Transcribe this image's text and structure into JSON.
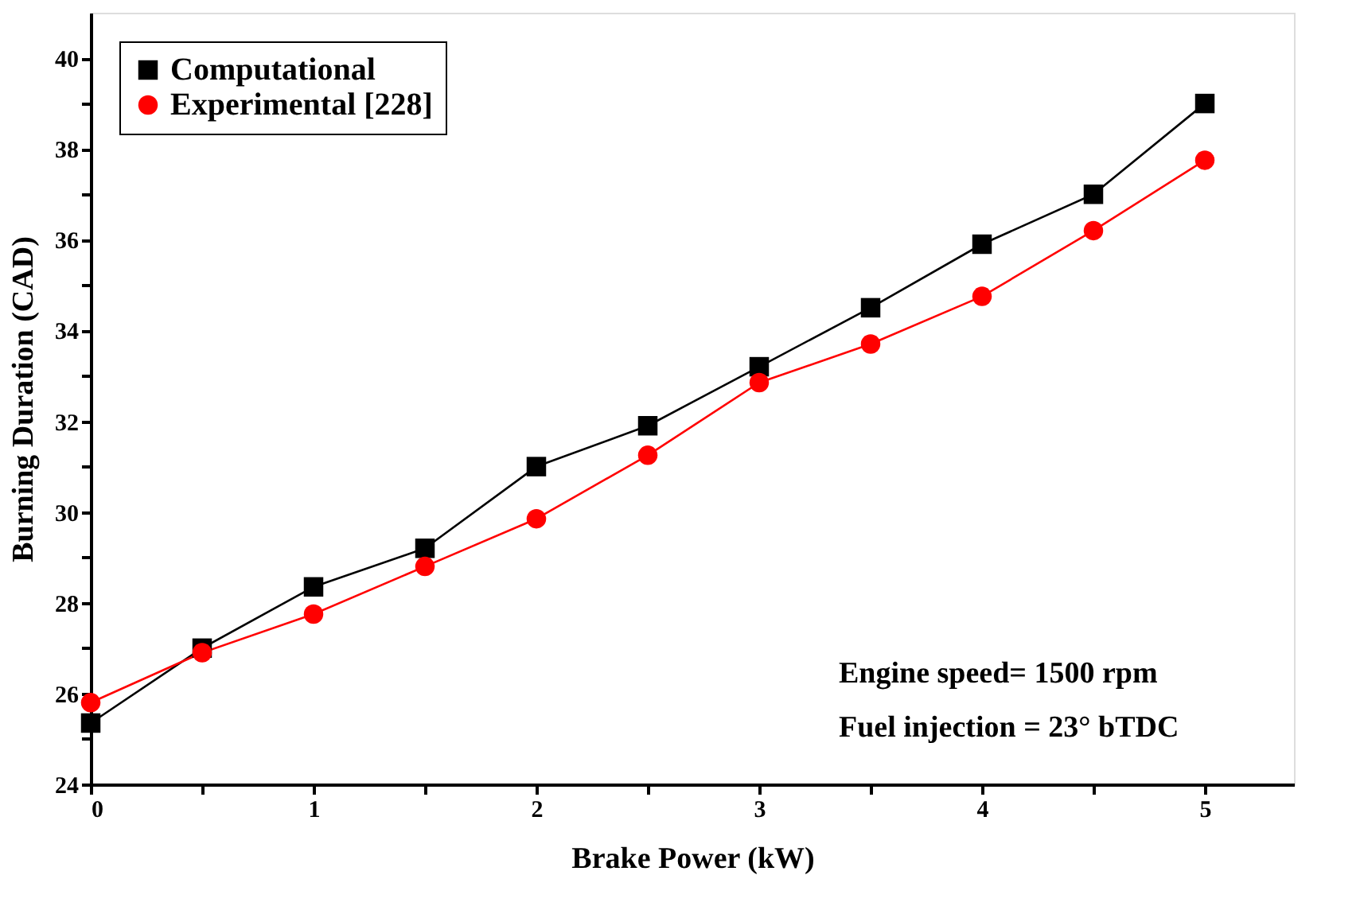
{
  "chart_data": {
    "type": "line",
    "xlabel": "Brake Power (kW)",
    "ylabel": "Burning Duration (CAD)",
    "x": [
      0,
      0.5,
      1,
      1.5,
      2,
      2.5,
      3,
      3.5,
      4,
      4.5,
      5
    ],
    "series": [
      {
        "name": "Computational",
        "color": "#000000",
        "marker": "square",
        "values": [
          25.35,
          27.0,
          28.35,
          29.2,
          31.0,
          31.9,
          33.2,
          34.5,
          35.9,
          37.0,
          39.0
        ]
      },
      {
        "name": "Experimental [228]",
        "color": "#ff0000",
        "marker": "circle",
        "values": [
          25.8,
          26.9,
          27.75,
          28.8,
          29.85,
          31.25,
          32.85,
          33.7,
          34.75,
          36.2,
          37.75
        ]
      }
    ],
    "xlim": [
      0,
      5.4
    ],
    "xticks": [
      0,
      {
        "value": 0.5,
        "label": null
      },
      1,
      {
        "value": 1.5,
        "label": null
      },
      2,
      {
        "value": 2.5,
        "label": null
      },
      3,
      {
        "value": 3.5,
        "label": null
      },
      4,
      {
        "value": 4.5,
        "label": null
      },
      5
    ],
    "ylim": [
      24,
      41
    ],
    "yticks": [
      24,
      {
        "value": 25,
        "label": null
      },
      26,
      {
        "value": 27,
        "label": null
      },
      28,
      {
        "value": 29,
        "label": null
      },
      30,
      {
        "value": 31,
        "label": null
      },
      32,
      {
        "value": 33,
        "label": null
      },
      34,
      {
        "value": 35,
        "label": null
      },
      36,
      {
        "value": 37,
        "label": null
      },
      38,
      {
        "value": 39,
        "label": null
      },
      40
    ],
    "annotations": [
      "Engine speed= 1500 rpm",
      "Fuel injection = 23° bTDC"
    ],
    "legend": "top left",
    "grid": false,
    "line_style": "solid"
  }
}
